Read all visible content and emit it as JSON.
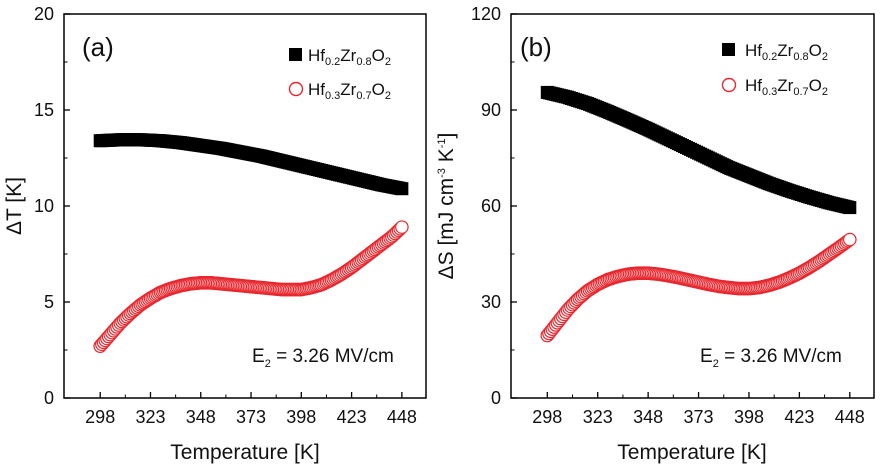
{
  "chart_data": [
    {
      "type": "scatter",
      "panel_label": "(a)",
      "xlabel": "Temperature [K]",
      "ylabel": "ΔT [K]",
      "xlim": [
        280,
        460
      ],
      "ylim": [
        0,
        20
      ],
      "x_ticks": [
        298,
        323,
        348,
        373,
        398,
        423,
        448
      ],
      "y_ticks": [
        0,
        5,
        10,
        15,
        20
      ],
      "legend_position": "top-right",
      "annotation": {
        "main": "E",
        "sub": "2",
        "rest": " = 3.26 MV/cm"
      },
      "series": [
        {
          "name": "Hf0.2Zr0.8O2",
          "name_parts": [
            "Hf",
            "0.2",
            "Zr",
            "0.8",
            "O",
            "2"
          ],
          "marker": "filled-square",
          "color": "#000000",
          "x": [
            298,
            308,
            318,
            328,
            338,
            348,
            358,
            368,
            378,
            388,
            398,
            408,
            418,
            428,
            438,
            448
          ],
          "y": [
            13.4,
            13.45,
            13.45,
            13.4,
            13.3,
            13.15,
            13.0,
            12.8,
            12.6,
            12.35,
            12.1,
            11.85,
            11.6,
            11.35,
            11.1,
            10.9
          ]
        },
        {
          "name": "Hf0.3Zr0.7O2",
          "name_parts": [
            "Hf",
            "0.3",
            "Zr",
            "0.7",
            "O",
            "2"
          ],
          "marker": "open-circle",
          "color": "#e8262d",
          "x": [
            298,
            303,
            308,
            313,
            318,
            323,
            328,
            333,
            338,
            343,
            348,
            353,
            358,
            363,
            368,
            373,
            378,
            383,
            388,
            393,
            398,
            403,
            408,
            413,
            418,
            423,
            428,
            433,
            438,
            443,
            448
          ],
          "y": [
            2.7,
            3.3,
            3.9,
            4.4,
            4.85,
            5.2,
            5.5,
            5.7,
            5.85,
            5.95,
            6.0,
            6.0,
            5.95,
            5.9,
            5.85,
            5.8,
            5.75,
            5.7,
            5.65,
            5.65,
            5.65,
            5.75,
            5.9,
            6.15,
            6.45,
            6.8,
            7.2,
            7.6,
            8.0,
            8.4,
            8.9
          ]
        }
      ]
    },
    {
      "type": "scatter",
      "panel_label": "(b)",
      "xlabel": "Temperature [K]",
      "ylabel": "ΔS [mJ cm-3 K-1]",
      "ylabel_parts": {
        "main": "ΔS [mJ cm",
        "sup1": "-3",
        "mid": " K",
        "sup2": "-1",
        "end": "]"
      },
      "xlim": [
        280,
        460
      ],
      "ylim": [
        0,
        120
      ],
      "x_ticks": [
        298,
        323,
        348,
        373,
        398,
        423,
        448
      ],
      "y_ticks": [
        0,
        30,
        60,
        90,
        120
      ],
      "legend_position": "top-right",
      "annotation": {
        "main": "E",
        "sub": "2",
        "rest": " = 3.26 MV/cm"
      },
      "series": [
        {
          "name": "Hf0.2Zr0.8O2",
          "name_parts": [
            "Hf",
            "0.2",
            "Zr",
            "0.8",
            "O",
            "2"
          ],
          "marker": "filled-square",
          "color": "#000000",
          "x": [
            298,
            308,
            318,
            328,
            338,
            348,
            358,
            368,
            378,
            388,
            398,
            408,
            418,
            428,
            438,
            448
          ],
          "y": [
            95.5,
            94.0,
            92.0,
            89.5,
            86.8,
            84.0,
            81.0,
            78.0,
            75.0,
            72.0,
            69.5,
            67.0,
            64.8,
            62.8,
            61.0,
            59.5
          ]
        },
        {
          "name": "Hf0.3Zr0.7O2",
          "name_parts": [
            "Hf",
            "0.3",
            "Zr",
            "0.7",
            "O",
            "2"
          ],
          "marker": "open-circle",
          "color": "#e8262d",
          "x": [
            298,
            303,
            308,
            313,
            318,
            323,
            328,
            333,
            338,
            343,
            348,
            353,
            358,
            363,
            368,
            373,
            378,
            383,
            388,
            393,
            398,
            403,
            408,
            413,
            418,
            423,
            428,
            433,
            438,
            443,
            448
          ],
          "y": [
            19.5,
            23.5,
            27.5,
            30.8,
            33.5,
            35.5,
            37.0,
            38.0,
            38.7,
            39.0,
            39.0,
            38.7,
            38.2,
            37.6,
            36.9,
            36.2,
            35.5,
            34.9,
            34.5,
            34.2,
            34.2,
            34.5,
            35.2,
            36.2,
            37.5,
            39.0,
            40.8,
            42.8,
            45.0,
            47.2,
            49.5
          ]
        }
      ]
    }
  ]
}
